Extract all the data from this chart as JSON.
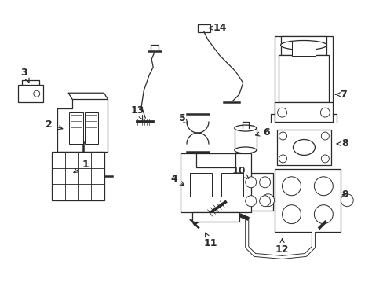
{
  "background_color": "#ffffff",
  "fig_width": 4.89,
  "fig_height": 3.6,
  "dpi": 100,
  "line_color": "#2a2a2a",
  "lw": 0.9
}
